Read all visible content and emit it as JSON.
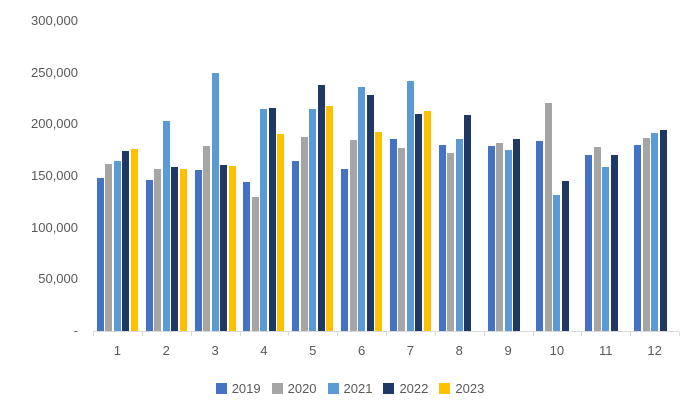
{
  "chart_data": {
    "type": "bar",
    "title": "",
    "xlabel": "",
    "ylabel": "",
    "categories": [
      "1",
      "2",
      "3",
      "4",
      "5",
      "6",
      "7",
      "8",
      "9",
      "10",
      "11",
      "12"
    ],
    "series": [
      {
        "name": "2019",
        "color": "#4472C4",
        "values": [
          148000,
          146000,
          156000,
          144000,
          165000,
          157000,
          186000,
          180000,
          179000,
          184000,
          170000,
          180000
        ]
      },
      {
        "name": "2020",
        "color": "#A5A5A5",
        "values": [
          162000,
          157000,
          179000,
          130000,
          188000,
          185000,
          177000,
          172000,
          182000,
          221000,
          178000,
          187000
        ]
      },
      {
        "name": "2021",
        "color": "#5B9BD5",
        "values": [
          165000,
          203000,
          250000,
          215000,
          215000,
          236000,
          242000,
          186000,
          175000,
          132000,
          159000,
          192000
        ]
      },
      {
        "name": "2022",
        "color": "#1F3864",
        "values": [
          174000,
          159000,
          161000,
          216000,
          238000,
          228000,
          210000,
          209000,
          186000,
          145000,
          170000,
          195000
        ]
      },
      {
        "name": "2023",
        "color": "#FFC000",
        "values": [
          176000,
          157000,
          160000,
          191000,
          218000,
          193000,
          213000,
          null,
          null,
          null,
          null,
          null
        ]
      }
    ],
    "y_axis": {
      "min": 0,
      "max": 300000,
      "step": 50000,
      "tick_labels": [
        "-",
        "50,000",
        "100,000",
        "150,000",
        "200,000",
        "250,000",
        "300,000"
      ]
    },
    "legend_position": "bottom",
    "grid": false
  },
  "colors": {
    "axis_line": "#D9D9D9",
    "text": "#595959",
    "background": "#FFFFFF"
  }
}
